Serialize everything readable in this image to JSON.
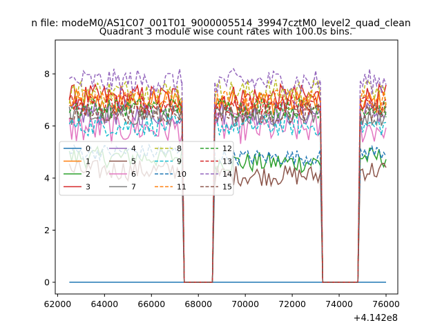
{
  "figure": {
    "suptitle": "n file: modeM0/AS1C07_001T01_9000005514_39947cztM0_level2_quad_clean",
    "title": "Quadrant 3 module wise count rates with 100.0s bins."
  },
  "chart_data": {
    "type": "line",
    "title": "Quadrant 3 module wise count rates with 100.0s bins.",
    "xlabel": "",
    "ylabel": "",
    "x_offset_label": "+4.142e8",
    "xlim": [
      61900,
      76500
    ],
    "ylim": [
      -0.45,
      9.3
    ],
    "x_ticks": [
      62000,
      64000,
      66000,
      68000,
      70000,
      72000,
      74000,
      76000
    ],
    "x_tick_labels": [
      "62000",
      "64000",
      "66000",
      "68000",
      "70000",
      "72000",
      "74000",
      "76000"
    ],
    "y_ticks": [
      0,
      2,
      4,
      6,
      8
    ],
    "y_tick_labels": [
      "0",
      "2",
      "4",
      "6",
      "8"
    ],
    "grid": false,
    "legend_position": "center-left",
    "legend_columns": 4,
    "segments": [
      [
        62500,
        67300
      ],
      [
        68700,
        73200
      ],
      [
        74900,
        76000
      ]
    ],
    "gap_segments": [
      [
        67400,
        68600
      ],
      [
        73300,
        74800
      ]
    ],
    "series": [
      {
        "name": "0",
        "color": "#1f77b4",
        "dash": "solid",
        "level": 0,
        "flat": true
      },
      {
        "name": "1",
        "color": "#ff7f0e",
        "dash": "solid",
        "level": 6.9,
        "noise": 0.5
      },
      {
        "name": "2",
        "color": "#2ca02c",
        "dash": "solid",
        "level": 4.8,
        "noise": 0.4
      },
      {
        "name": "3",
        "color": "#d62728",
        "dash": "solid",
        "level": 7.1,
        "noise": 0.5
      },
      {
        "name": "4",
        "color": "#9467bd",
        "dash": "solid",
        "level": 6.5,
        "noise": 0.5
      },
      {
        "name": "5",
        "color": "#8c564b",
        "dash": "solid",
        "level": 4.3,
        "noise": 0.4
      },
      {
        "name": "6",
        "color": "#e377c2",
        "dash": "solid",
        "level": 5.9,
        "noise": 0.6
      },
      {
        "name": "7",
        "color": "#7f7f7f",
        "dash": "solid",
        "level": 6.4,
        "noise": 0.4
      },
      {
        "name": "8",
        "color": "#bcbd22",
        "dash": "dashed",
        "level": 7.3,
        "noise": 0.5
      },
      {
        "name": "9",
        "color": "#17becf",
        "dash": "dashed",
        "level": 6.0,
        "noise": 0.4
      },
      {
        "name": "10",
        "color": "#1f77b4",
        "dash": "dashed",
        "level": 5.0,
        "noise": 0.3
      },
      {
        "name": "11",
        "color": "#ff7f0e",
        "dash": "dashed",
        "level": 7.0,
        "noise": 0.4
      },
      {
        "name": "12",
        "color": "#2ca02c",
        "dash": "dashed",
        "level": 6.7,
        "noise": 0.4
      },
      {
        "name": "13",
        "color": "#d62728",
        "dash": "dashed",
        "level": 6.8,
        "noise": 0.4
      },
      {
        "name": "14",
        "color": "#9467bd",
        "dash": "dashed",
        "level": 7.7,
        "noise": 0.5
      },
      {
        "name": "15",
        "color": "#8c564b",
        "dash": "dashed",
        "level": 6.5,
        "noise": 0.4
      }
    ]
  }
}
